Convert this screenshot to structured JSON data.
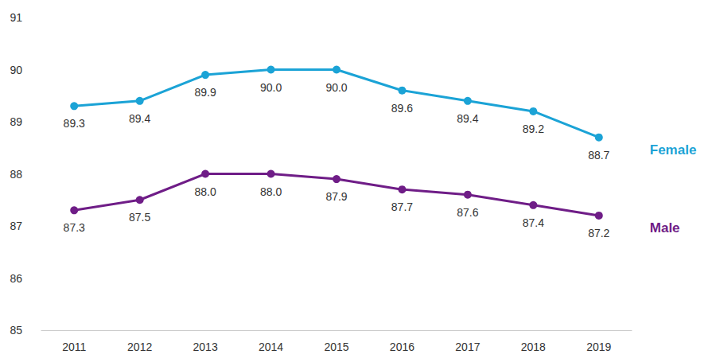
{
  "chart_data": {
    "type": "line",
    "categories": [
      "2011",
      "2012",
      "2013",
      "2014",
      "2015",
      "2016",
      "2017",
      "2018",
      "2019"
    ],
    "series": [
      {
        "name": "Female",
        "color": "#1ba3d6",
        "marker": "circle",
        "values": [
          89.3,
          89.4,
          89.9,
          90.0,
          90.0,
          89.6,
          89.4,
          89.2,
          88.7
        ],
        "value_labels": [
          "89.3",
          "89.4",
          "89.9",
          "90.0",
          "90.0",
          "89.6",
          "89.4",
          "89.2",
          "88.7"
        ]
      },
      {
        "name": "Male",
        "color": "#6f1d87",
        "marker": "circle",
        "values": [
          87.3,
          87.5,
          88.0,
          88.0,
          87.9,
          87.7,
          87.6,
          87.4,
          87.2
        ],
        "value_labels": [
          "87.3",
          "87.5",
          "88.0",
          "88.0",
          "87.9",
          "87.7",
          "87.6",
          "87.4",
          "87.2"
        ]
      }
    ],
    "ylim": [
      85,
      91
    ],
    "yticks": [
      85,
      86,
      87,
      88,
      89,
      90,
      91
    ],
    "grid": false,
    "data_labels": true
  }
}
